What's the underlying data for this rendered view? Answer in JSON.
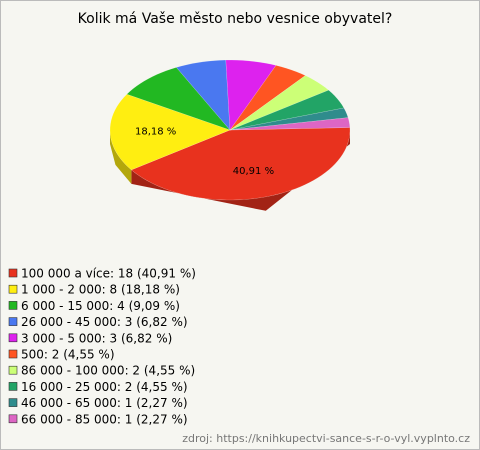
{
  "chart_data": {
    "type": "pie3d",
    "title": "Kolik má Vaše město nebo vesnice obyvatel?",
    "categories": [
      "100 000 a více: 18 (40,91 %)",
      "1 000 - 2 000: 8 (18,18 %)",
      "6 000 - 15 000: 4 (9,09 %)",
      "26 000 - 45 000: 3 (6,82 %)",
      "3 000 - 5 000: 3 (6,82 %)",
      "500: 2 (4,55 %)",
      "86 000 - 100 000: 2 (4,55 %)",
      "16 000 - 25 000: 2 (4,55 %)",
      "46 000 - 65 000: 1 (2,27 %)",
      "66 000 - 85 000: 1 (2,27 %)"
    ],
    "values": [
      18,
      8,
      4,
      3,
      3,
      2,
      2,
      2,
      1,
      1
    ],
    "value_labels": [
      "40,91 %",
      "18,18 %",
      null,
      null,
      null,
      null,
      null,
      null,
      null,
      null
    ],
    "colors": [
      "#e8321e",
      "#ffee11",
      "#22b822",
      "#4a78f0",
      "#dd22ee",
      "#ff5522",
      "#ccff77",
      "#22a466",
      "#2f8c8c",
      "#dd66c4"
    ],
    "source": "zdroj: https://knihkupectvi-sance-s-r-o-vyl.vyplnto.cz"
  }
}
